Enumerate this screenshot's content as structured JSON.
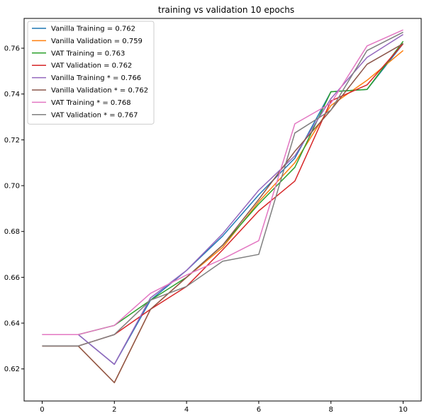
{
  "chart_data": {
    "type": "line",
    "title": "training vs validation 10 epochs",
    "xlabel": "",
    "ylabel": "",
    "xlim": [
      -0.5,
      10.5
    ],
    "ylim": [
      0.606,
      0.773
    ],
    "x_ticks": [
      0,
      2,
      4,
      6,
      8,
      10
    ],
    "y_ticks": [
      0.62,
      0.64,
      0.66,
      0.68,
      0.7,
      0.72,
      0.74,
      0.76
    ],
    "y_tick_labels": [
      "0.62",
      "0.64",
      "0.66",
      "0.68",
      "0.70",
      "0.72",
      "0.74",
      "0.76"
    ],
    "grid": false,
    "legend_position": "top-left",
    "x": [
      0,
      1,
      2,
      3,
      4,
      5,
      6,
      7,
      8,
      9,
      10
    ],
    "series": [
      {
        "name": "Vanilla Training = 0.762",
        "color": "#1f77b4",
        "values": [
          0.635,
          0.635,
          0.622,
          0.65,
          0.663,
          0.678,
          0.696,
          0.712,
          0.741,
          0.742,
          0.762
        ]
      },
      {
        "name": "Vanilla Validation = 0.759",
        "color": "#ff7f0e",
        "values": [
          0.63,
          0.63,
          0.614,
          0.646,
          0.66,
          0.673,
          0.693,
          0.71,
          0.735,
          0.746,
          0.759
        ]
      },
      {
        "name": "VAT Training = 0.763",
        "color": "#2ca02c",
        "values": [
          0.635,
          0.635,
          0.639,
          0.65,
          0.66,
          0.674,
          0.692,
          0.708,
          0.741,
          0.742,
          0.763
        ]
      },
      {
        "name": "VAT Validation = 0.762",
        "color": "#d62728",
        "values": [
          0.63,
          0.63,
          0.635,
          0.646,
          0.656,
          0.672,
          0.689,
          0.702,
          0.737,
          0.744,
          0.762
        ]
      },
      {
        "name": "Vanilla Training * = 0.766",
        "color": "#9467bd",
        "values": [
          0.635,
          0.635,
          0.622,
          0.651,
          0.663,
          0.679,
          0.698,
          0.713,
          0.738,
          0.756,
          0.766
        ]
      },
      {
        "name": "Vanilla Validation * = 0.762",
        "color": "#8c564b",
        "values": [
          0.63,
          0.63,
          0.614,
          0.646,
          0.66,
          0.674,
          0.694,
          0.715,
          0.733,
          0.753,
          0.762
        ]
      },
      {
        "name": "VAT Training * = 0.768",
        "color": "#e377c2",
        "values": [
          0.635,
          0.635,
          0.639,
          0.653,
          0.661,
          0.668,
          0.676,
          0.727,
          0.736,
          0.761,
          0.768
        ]
      },
      {
        "name": "VAT Validation * = 0.767",
        "color": "#7f7f7f",
        "values": [
          0.63,
          0.63,
          0.635,
          0.65,
          0.656,
          0.667,
          0.67,
          0.723,
          0.733,
          0.759,
          0.767
        ]
      }
    ]
  }
}
